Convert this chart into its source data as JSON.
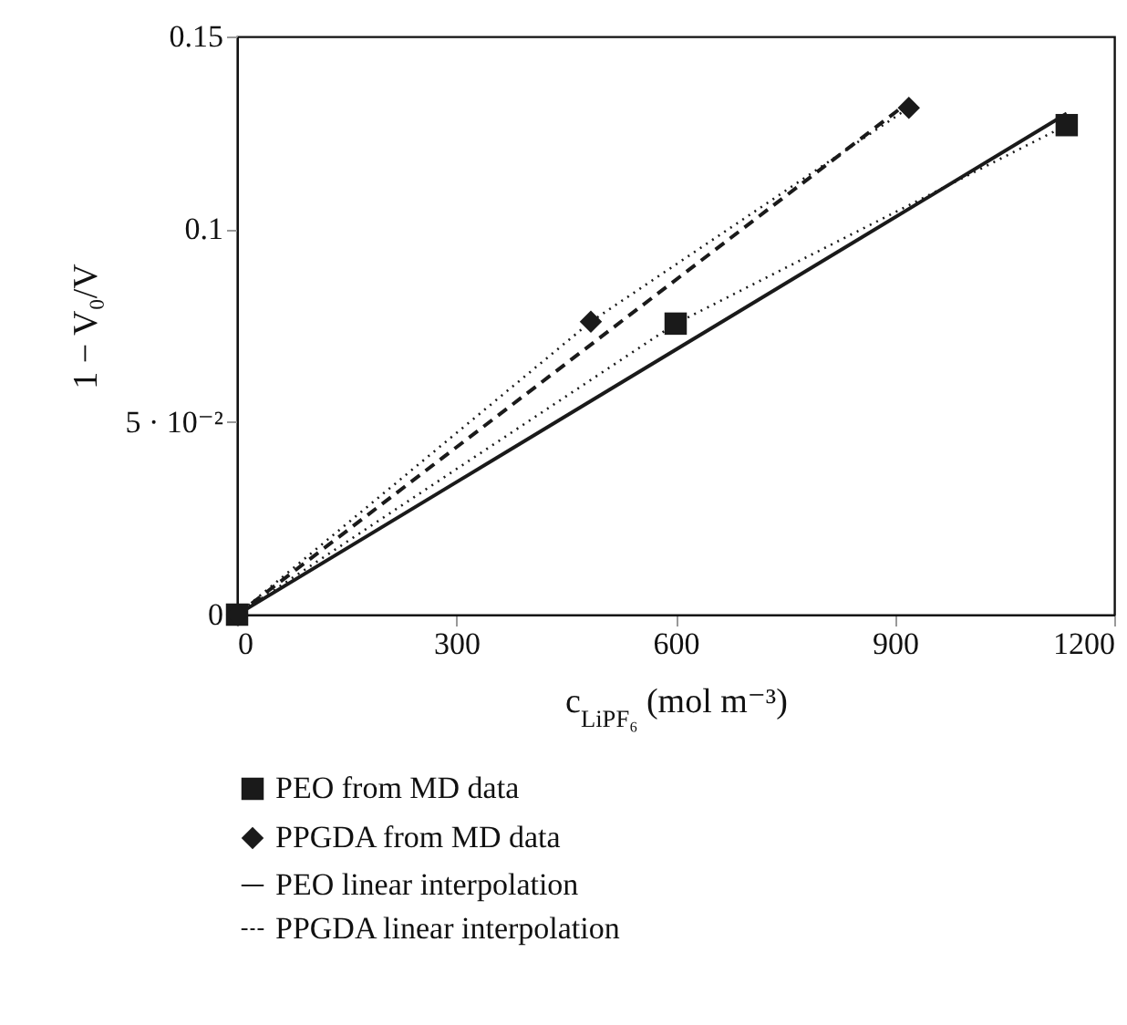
{
  "chart_data": {
    "type": "line",
    "xlabel": "c$_{LiPF₆}$ (mol m⁻³)",
    "ylabel": "1 − V₀/V",
    "xlim": [
      0,
      1200
    ],
    "xticks": [
      0,
      300,
      600,
      900,
      1200
    ],
    "ylim": [
      0,
      0.15
    ],
    "yticks": [
      0,
      {
        "value": 0.05,
        "label": "5 · 10⁻²"
      },
      0.1,
      0.15
    ],
    "legend": "bottom",
    "grid": false,
    "series": [
      {
        "name": "PEO from MD data",
        "color": "#1a1a1a",
        "marker": "square",
        "line_style": "dotted",
        "x": [
          0,
          600,
          1135
        ],
        "values": [
          0,
          0.0755,
          0.127
        ]
      },
      {
        "name": "PPGDA from MD data",
        "color": "#1a1a1a",
        "marker": "diamond",
        "line_style": "dotted",
        "x": [
          0,
          484,
          919
        ],
        "values": [
          0,
          0.076,
          0.1315
        ]
      },
      {
        "name": "PEO linear interpolation",
        "color": "#1a1a1a",
        "marker": "none",
        "line_style": "solid",
        "x": [
          0,
          1135
        ],
        "values": [
          0,
          0.13
        ]
      },
      {
        "name": "PPGDA linear interpolation",
        "color": "#1a1a1a",
        "marker": "none",
        "line_style": "dashed",
        "x": [
          0,
          919
        ],
        "values": [
          0,
          0.133
        ]
      }
    ]
  }
}
